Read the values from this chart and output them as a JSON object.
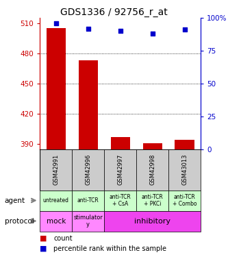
{
  "title": "GDS1336 / 92756_r_at",
  "samples": [
    "GSM42991",
    "GSM42996",
    "GSM42997",
    "GSM42998",
    "GSM43013"
  ],
  "bar_values": [
    505,
    473,
    397,
    391,
    394
  ],
  "scatter_values": [
    96,
    92,
    90,
    88,
    91
  ],
  "ylim_left": [
    385,
    515
  ],
  "ylim_right": [
    0,
    100
  ],
  "yticks_left": [
    390,
    420,
    450,
    480,
    510
  ],
  "yticks_right": [
    0,
    25,
    50,
    75,
    100
  ],
  "bar_color": "#cc0000",
  "scatter_color": "#0000cc",
  "agent_labels": [
    "untreated",
    "anti-TCR",
    "anti-TCR\n+ CsA",
    "anti-TCR\n+ PKCi",
    "anti-TCR\n+ Combo"
  ],
  "agent_bg": "#ccffcc",
  "sample_bg_color": "#cccccc",
  "protocol_mock_color": "#ff88ff",
  "protocol_stim_color": "#ff88ff",
  "protocol_inhib_color": "#ee44ee",
  "legend_count_color": "#cc0000",
  "legend_pct_color": "#0000cc"
}
